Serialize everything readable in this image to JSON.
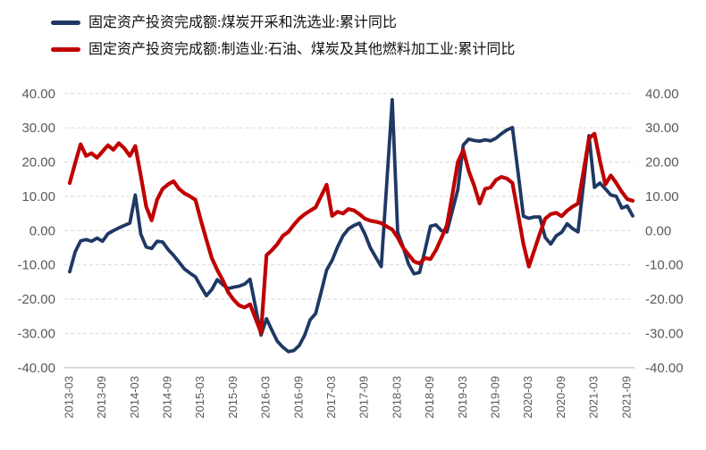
{
  "page": {
    "background": "#ffffff"
  },
  "legend": {
    "position": "top-left"
  },
  "chart_data": {
    "type": "line",
    "title": "",
    "xlabel": "",
    "ylabel": "",
    "frequency": "monthly",
    "x_start": "2013-03",
    "x_end": "2021-10",
    "ylim": [
      -40,
      40
    ],
    "grid": "horizontal-dashed",
    "legend_position": "top-left",
    "axis_text_color": "#595959",
    "gridline_color": "#d9d9d9",
    "baseline_color": "#c9c9c9",
    "x_tick_labels": [
      "2013-03",
      "2013-09",
      "2014-03",
      "2014-09",
      "2015-03",
      "2015-09",
      "2016-03",
      "2016-09",
      "2017-03",
      "2017-09",
      "2018-03",
      "2018-09",
      "2019-03",
      "2019-09",
      "2020-03",
      "2020-09",
      "2021-03",
      "2021-09"
    ],
    "x_tick_every_n_points": 6,
    "y_ticks": {
      "labels": [
        "40.00",
        "30.00",
        "20.00",
        "10.00",
        "0.00",
        "-10.00",
        "-20.00",
        "-30.00",
        "-40.00"
      ],
      "values": [
        40,
        30,
        20,
        10,
        0,
        -10,
        -20,
        -30,
        -40
      ]
    },
    "dual_axis": true,
    "series": [
      {
        "name": "固定资产投资完成额:煤炭开采和洗选业:累计同比",
        "color": "#1f3864",
        "values": [
          -12.0,
          -6.2,
          -3.0,
          -2.6,
          -3.1,
          -2.2,
          -3.1,
          -0.9,
          0.0,
          0.8,
          1.5,
          2.2,
          10.4,
          -1.0,
          -4.8,
          -5.2,
          -3.1,
          -3.3,
          -5.5,
          -7.2,
          -9.2,
          -11.2,
          -12.4,
          -13.5,
          -16.3,
          -19.0,
          -17.2,
          -14.3,
          -15.8,
          -16.9,
          -16.5,
          -16.2,
          -15.6,
          -14.2,
          -22.4,
          -30.5,
          -25.7,
          -29.1,
          -32.3,
          -34.0,
          -35.3,
          -35.0,
          -33.5,
          -30.5,
          -26.0,
          -24.2,
          -17.9,
          -11.5,
          -8.7,
          -4.8,
          -1.5,
          0.5,
          1.5,
          2.2,
          -1.0,
          -5.0,
          -7.8,
          -10.5,
          13.9,
          38.2,
          -0.5,
          -4.8,
          -9.8,
          -12.6,
          -12.2,
          -5.7,
          1.3,
          1.7,
          0.0,
          -0.4,
          5.8,
          12.0,
          25.0,
          26.7,
          26.3,
          26.1,
          26.5,
          26.2,
          27.0,
          28.3,
          29.4,
          30.1,
          17.2,
          4.2,
          3.6,
          4.0,
          4.0,
          -2.0,
          -3.9,
          -1.5,
          -0.5,
          2.0,
          0.6,
          -0.4,
          13.7,
          27.7,
          12.6,
          13.9,
          12.2,
          10.4,
          10.0,
          6.6,
          7.2,
          4.3
        ]
      },
      {
        "name": "固定资产投资完成额:制造业:石油、煤炭及其他燃料加工业:累计同比",
        "color": "#c00000",
        "values": [
          13.9,
          19.7,
          25.2,
          21.8,
          22.6,
          21.3,
          23.1,
          24.9,
          23.6,
          25.5,
          24.0,
          21.8,
          24.7,
          16.1,
          7.0,
          3.0,
          9.1,
          12.2,
          13.5,
          14.4,
          12.2,
          10.9,
          10.0,
          9.0,
          3.0,
          -2.6,
          -8.0,
          -11.5,
          -14.5,
          -18.0,
          -20.2,
          -21.8,
          -22.4,
          -21.5,
          -25.7,
          -29.8,
          -7.2,
          -5.7,
          -3.9,
          -1.5,
          -0.4,
          1.7,
          3.5,
          4.8,
          5.8,
          6.8,
          10.1,
          13.4,
          4.3,
          5.5,
          5.0,
          6.3,
          5.9,
          4.8,
          3.5,
          2.9,
          2.6,
          2.2,
          1.2,
          0.3,
          -2.0,
          -5.0,
          -7.0,
          -9.0,
          -9.6,
          -8.0,
          -8.3,
          -5.7,
          -2.2,
          1.5,
          10.5,
          20.0,
          23.5,
          17.4,
          13.1,
          7.9,
          12.2,
          12.6,
          14.8,
          15.7,
          15.2,
          13.9,
          5.0,
          -3.9,
          -10.5,
          -5.7,
          -0.9,
          3.5,
          4.8,
          5.2,
          4.2,
          5.8,
          7.0,
          7.9,
          17.4,
          26.9,
          28.3,
          20.4,
          13.5,
          16.1,
          13.9,
          11.3,
          9.2,
          8.7
        ]
      }
    ]
  }
}
